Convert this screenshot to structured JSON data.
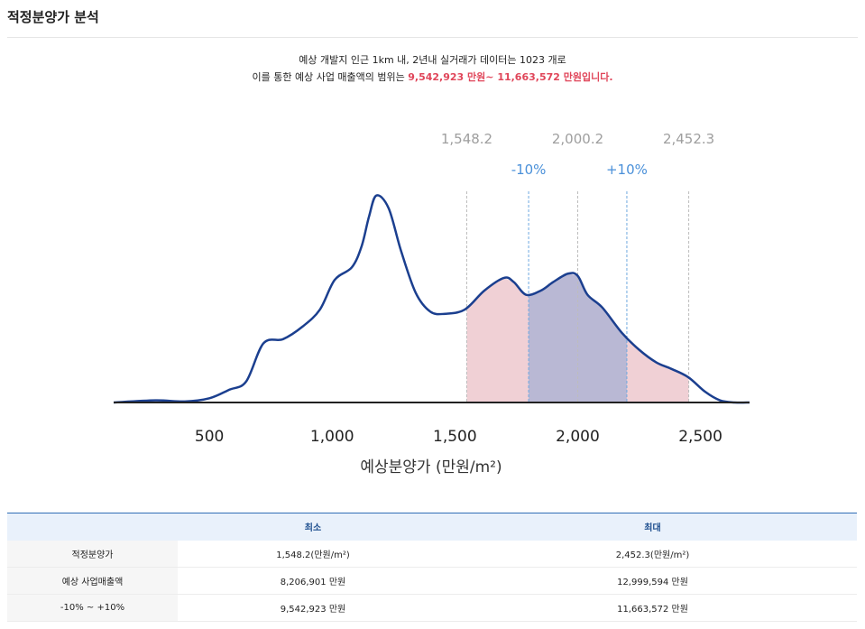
{
  "section_title": "적정분양가 분석",
  "summary": {
    "line1": "예상 개발지 인근 1km 내, 2년내 실거래가 데이터는 1023 개로",
    "line2_prefix": "이를 통한 예상 사업 매출액의 범위는 ",
    "line2_highlight": "9,542,923 만원~ 11,663,572 만원입니다."
  },
  "chart_data": {
    "type": "area",
    "xlabel": "예상분양가 (만원/m²)",
    "xlim": [
      110,
      2700
    ],
    "ylim": [
      0,
      1.0
    ],
    "x_ticks": [
      500,
      1000,
      1500,
      2000,
      2500
    ],
    "x_tick_labels": [
      "500",
      "1,000",
      "1,500",
      "2,000",
      "2,500"
    ],
    "curve": {
      "x": [
        110,
        280,
        400,
        500,
        580,
        650,
        720,
        800,
        880,
        950,
        1010,
        1080,
        1120,
        1150,
        1180,
        1230,
        1280,
        1340,
        1400,
        1460,
        1540,
        1620,
        1700,
        1740,
        1790,
        1850,
        1900,
        1960,
        2000,
        2040,
        2100,
        2180,
        2250,
        2320,
        2380,
        2450,
        2520,
        2580,
        2640,
        2700
      ],
      "y": [
        0.0,
        0.01,
        0.005,
        0.02,
        0.06,
        0.1,
        0.28,
        0.3,
        0.36,
        0.44,
        0.58,
        0.64,
        0.74,
        0.88,
        0.98,
        0.92,
        0.72,
        0.52,
        0.43,
        0.42,
        0.44,
        0.53,
        0.59,
        0.57,
        0.51,
        0.53,
        0.57,
        0.61,
        0.6,
        0.51,
        0.45,
        0.33,
        0.25,
        0.19,
        0.16,
        0.12,
        0.05,
        0.01,
        0.0,
        0.0
      ]
    },
    "shaded_regions": [
      {
        "name": "적정분양가",
        "x_min": 1548.2,
        "x_max": 2452.3,
        "color": "#efcdd3"
      },
      {
        "name": "-10% ~ +10%",
        "x_min": 1800,
        "x_max": 2200,
        "color": "#b5b6d4"
      }
    ],
    "reference_lines": [
      {
        "x": 1548.2,
        "label": "1,548.2",
        "style": "gray"
      },
      {
        "x": 2000.2,
        "label": "2,000.2",
        "style": "gray"
      },
      {
        "x": 2452.3,
        "label": "2,452.3",
        "style": "gray"
      },
      {
        "x": 1800.2,
        "label": "-10%",
        "style": "blue"
      },
      {
        "x": 2200.2,
        "label": "+10%",
        "style": "blue"
      }
    ],
    "colors": {
      "line": "#1b3f8f",
      "ref_gray": "#bdbdbd",
      "ref_blue": "#6ea8e0"
    }
  },
  "table": {
    "headers": [
      "",
      "최소",
      "최대"
    ],
    "rows": [
      {
        "label": "적정분양가",
        "min": "1,548.2(만원/m²)",
        "max": "2,452.3(만원/m²)"
      },
      {
        "label": "예상 사업매출액",
        "min": "8,206,901 만원",
        "max": "12,999,594 만원"
      },
      {
        "label": "-10% ~ +10%",
        "min": "9,542,923 만원",
        "max": "11,663,572 만원"
      }
    ]
  }
}
